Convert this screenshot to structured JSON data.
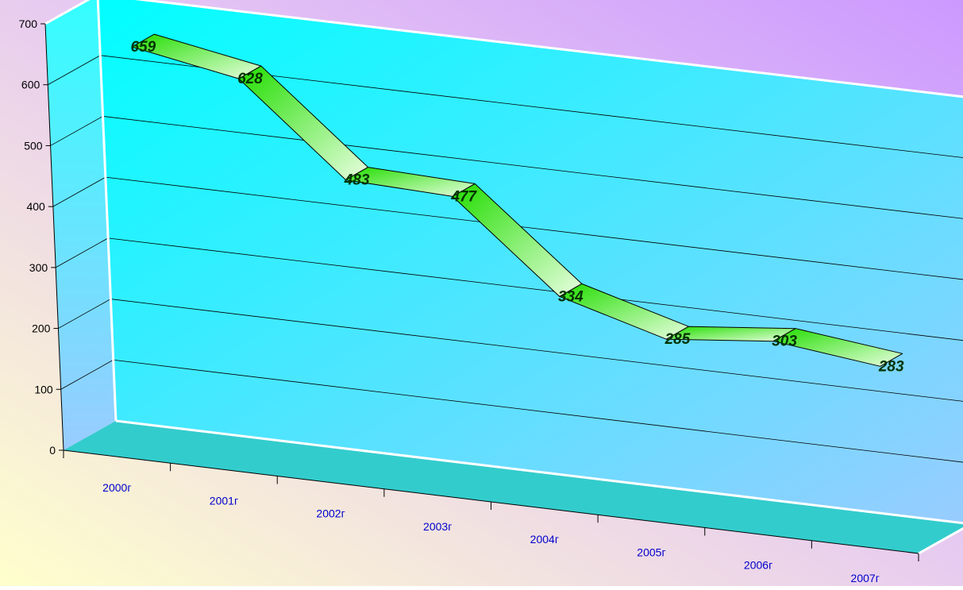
{
  "chart_data": {
    "type": "line",
    "title": "",
    "xlabel": "",
    "ylabel": "",
    "categories": [
      "2000г",
      "2001г",
      "2002г",
      "2003г",
      "2004г",
      "2005г",
      "2006г",
      "2007г"
    ],
    "values": [
      659,
      628,
      483,
      477,
      334,
      285,
      303,
      283
    ],
    "data_labels": [
      "659",
      "628",
      "483",
      "477",
      "334",
      "285",
      "303",
      "283"
    ],
    "yticks": [
      "0",
      "100",
      "200",
      "300",
      "400",
      "500",
      "600",
      "700"
    ],
    "ylim": [
      0,
      700
    ],
    "grid": true,
    "style": "3d-ribbon",
    "colors": {
      "ribbon_light": "#e8ffe0",
      "ribbon_dark": "#22dd00",
      "wall_top": "#00ffff",
      "wall_bottom": "#99ccff",
      "floor": "#33cccc",
      "background_a": "#ffffcc",
      "background_b": "#cc99ff",
      "category_text": "#0000cc",
      "value_label_text": "#003300"
    }
  }
}
